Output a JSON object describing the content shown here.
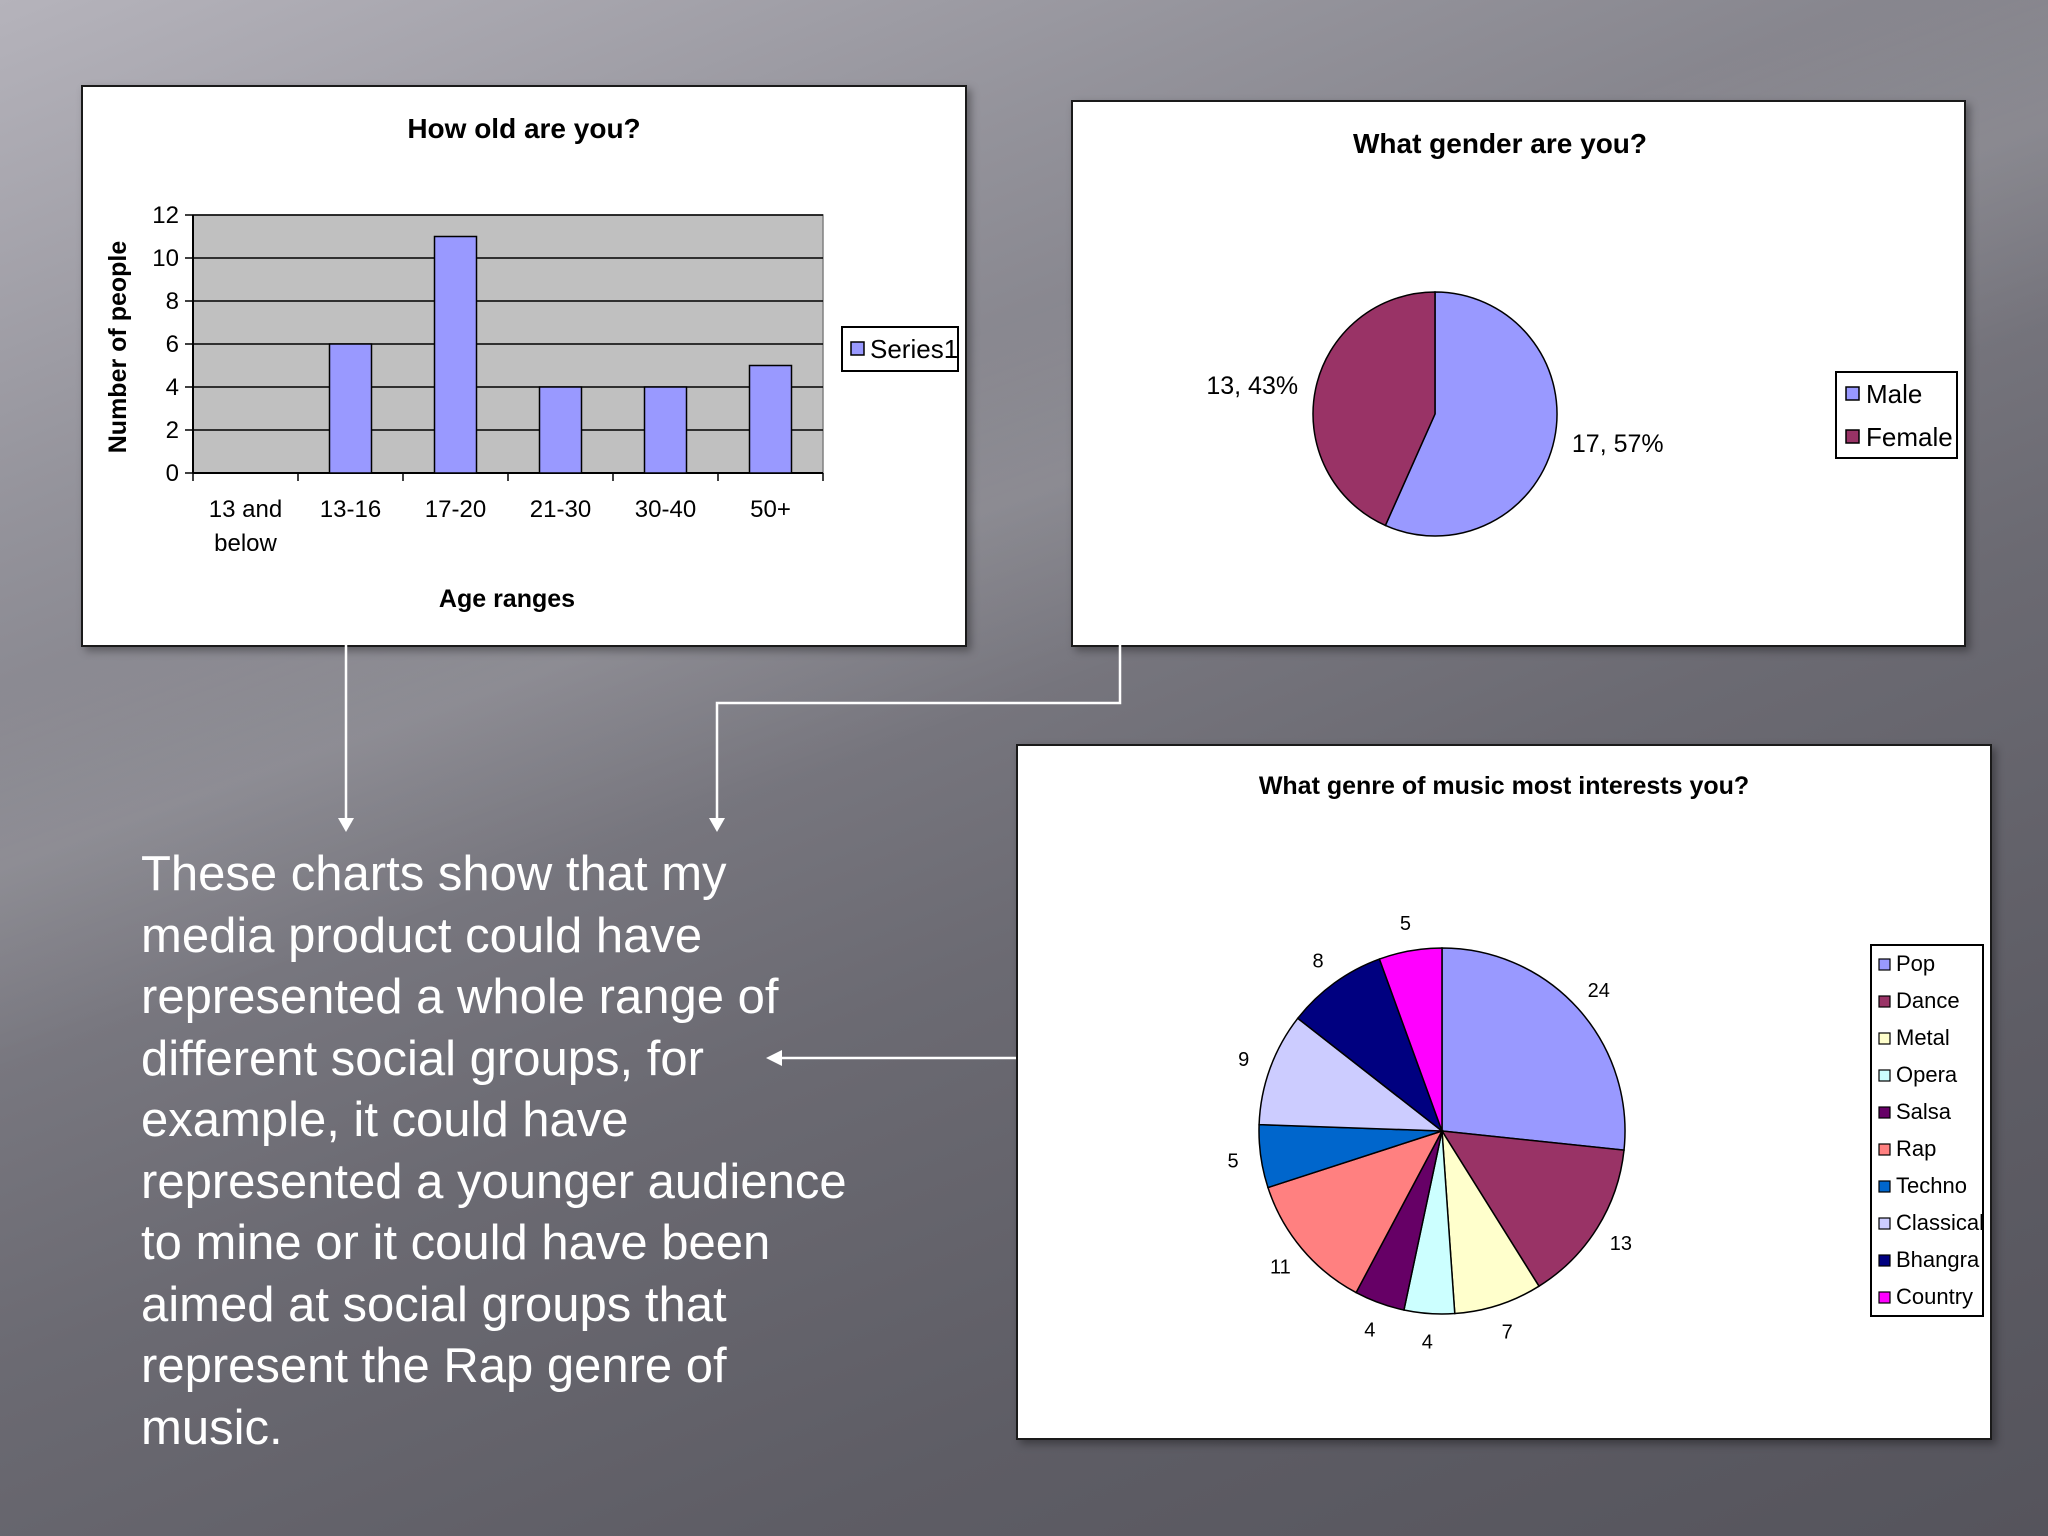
{
  "summary_text": "These charts show that my media product could have represented a whole range of different social groups, for example, it could have represented a younger audience to mine or it could have been aimed at social groups that represent the Rap genre of music.",
  "colors": {
    "bar": "#9999ff",
    "plot_area": "#c0c0c0",
    "male": "#9999ff",
    "female": "#993366",
    "connector": "#ffffff"
  },
  "chart_data": [
    {
      "type": "bar",
      "title": "How old are you?",
      "xlabel": "Age ranges",
      "ylabel": "Number of people",
      "categories": [
        "13 and below",
        "13-16",
        "17-20",
        "21-30",
        "30-40",
        "50+"
      ],
      "category_lines": [
        [
          "13 and",
          "below"
        ],
        [
          "13-16"
        ],
        [
          "17-20"
        ],
        [
          "21-30"
        ],
        [
          "30-40"
        ],
        [
          "50+"
        ]
      ],
      "series": [
        {
          "name": "Series1",
          "values": [
            0,
            6,
            11,
            4,
            4,
            5
          ]
        }
      ],
      "ylim": [
        0,
        12
      ],
      "yticks": [
        0,
        2,
        4,
        6,
        8,
        10,
        12
      ],
      "grid": true,
      "legend": "right"
    },
    {
      "type": "pie",
      "title": "What gender are you?",
      "labels": [
        "Male",
        "Female"
      ],
      "values": [
        17,
        13
      ],
      "data_labels": [
        "17, 57%",
        "13, 43%"
      ],
      "colors": [
        "#9999ff",
        "#993366"
      ],
      "legend": "right"
    },
    {
      "type": "pie",
      "title": "What genre of music most interests you?",
      "labels": [
        "Pop",
        "Dance",
        "Metal",
        "Opera",
        "Salsa",
        "Rap",
        "Techno",
        "Classical",
        "Bhangra",
        "Country"
      ],
      "values": [
        24,
        13,
        7,
        4,
        4,
        11,
        5,
        9,
        8,
        5
      ],
      "colors": [
        "#9999ff",
        "#993366",
        "#ffffcc",
        "#ccffff",
        "#660066",
        "#ff8080",
        "#0066cc",
        "#ccccff",
        "#000080",
        "#ff00ff"
      ],
      "legend": "right"
    }
  ]
}
